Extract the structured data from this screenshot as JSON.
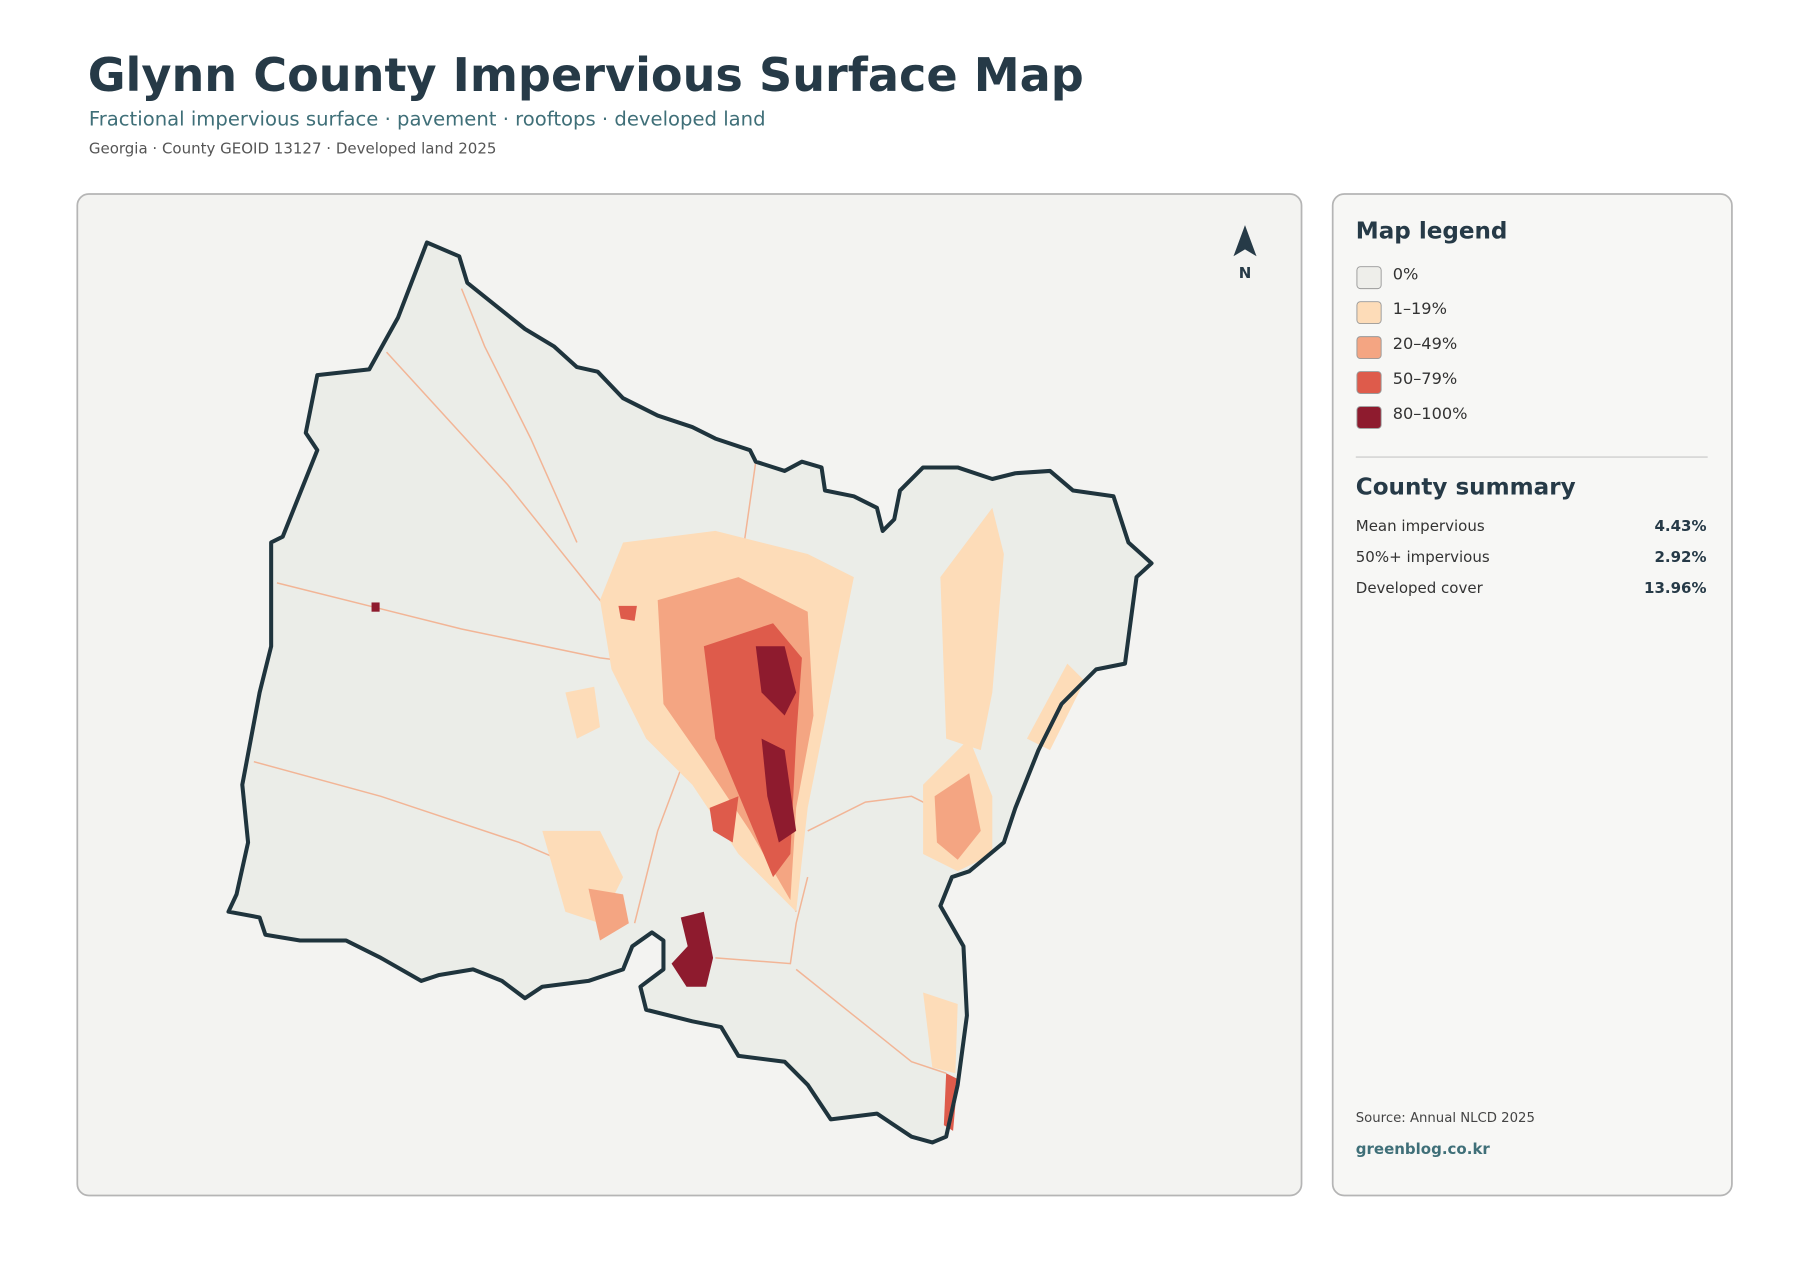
{
  "header": {
    "title": "Glynn County Impervious Surface Map",
    "subtitle": "Fractional impervious surface · pavement · rooftops · developed land",
    "meta": "Georgia · County GEOID 13127 · Developed land 2025"
  },
  "map": {
    "north_label": "N"
  },
  "legend": {
    "title": "Map legend",
    "items": [
      {
        "label": "0%",
        "color": "#eeeeea"
      },
      {
        "label": "1–19%",
        "color": "#fddcb8"
      },
      {
        "label": "20–49%",
        "color": "#f4a582"
      },
      {
        "label": "50–79%",
        "color": "#de5b4b"
      },
      {
        "label": "80–100%",
        "color": "#8e1b2e"
      }
    ]
  },
  "summary": {
    "title": "County summary",
    "rows": [
      [
        "Mean impervious",
        "4.43%"
      ],
      [
        "50%+ impervious",
        "2.92%"
      ],
      [
        "Developed cover",
        "13.96%"
      ]
    ]
  },
  "footer": {
    "source": "Source: Annual NLCD 2025",
    "brand": "greenblog.co.kr"
  }
}
